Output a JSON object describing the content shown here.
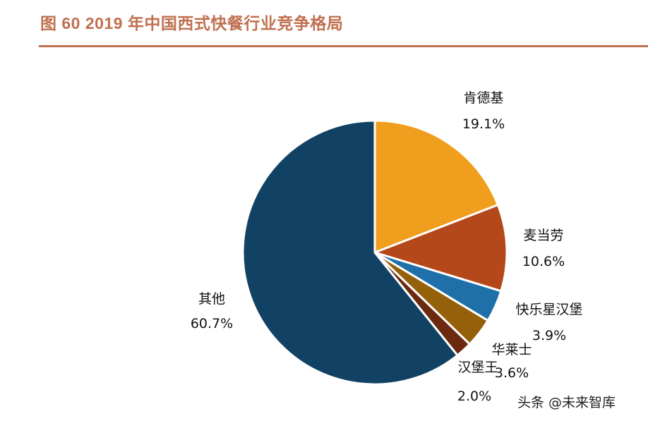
{
  "header": {
    "title": "图 60 2019 年中国西式快餐行业竞争格局"
  },
  "watermark": "头条 @未来智库",
  "chart_data": {
    "type": "pie",
    "title": "",
    "start": "top",
    "direction": "clockwise",
    "slices": [
      {
        "label": "肯德基",
        "value": 19.1,
        "value_label": "19.1%",
        "color": "#F09E1E"
      },
      {
        "label": "麦当劳",
        "value": 10.6,
        "value_label": "10.6%",
        "color": "#B5481A"
      },
      {
        "label": "快乐星汉堡",
        "value": 3.9,
        "value_label": "3.9%",
        "color": "#1F6FA8"
      },
      {
        "label": "华莱士",
        "value": 3.6,
        "value_label": "3.6%",
        "color": "#94600A"
      },
      {
        "label": "汉堡王",
        "value": 2.0,
        "value_label": "2.0%",
        "color": "#6B2A10"
      },
      {
        "label": "其他",
        "value": 60.7,
        "value_label": "60.7%",
        "color": "#124263"
      }
    ]
  }
}
